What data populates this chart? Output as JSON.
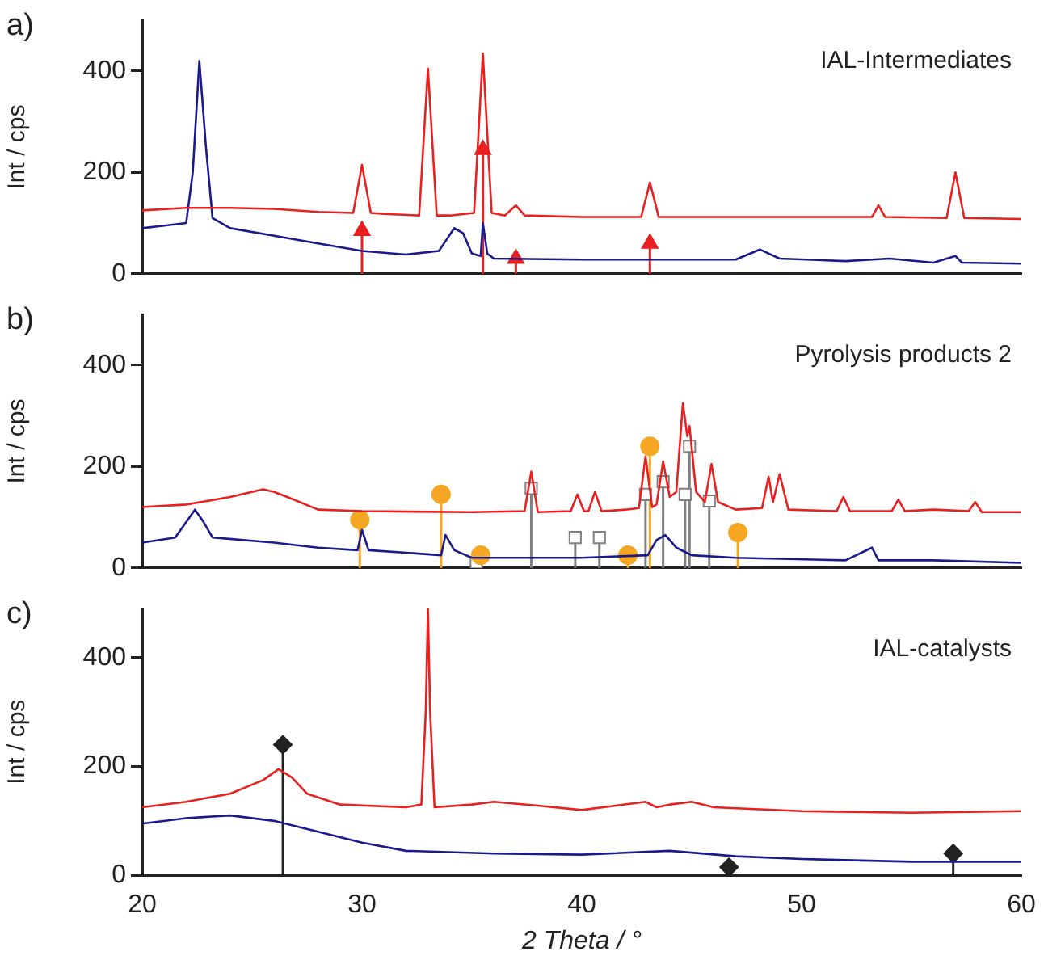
{
  "chart_data": [
    {
      "type": "line",
      "title": "IAL-Intermediates",
      "ylabel": "Int / cps",
      "annotations": [
        "a)"
      ],
      "xlim": [
        20,
        60
      ],
      "xticks": [
        20,
        30,
        40,
        50,
        60
      ],
      "ylim": [
        0,
        500
      ],
      "yticks": [
        0,
        200,
        400
      ],
      "tick_labels": "y",
      "grid": false,
      "legend": false,
      "series": [
        {
          "type": "line",
          "color": "#e8201f",
          "x": [
            20,
            22,
            24,
            26,
            28,
            29.6,
            30.0,
            30.4,
            31,
            32.6,
            33.0,
            33.4,
            34,
            35.1,
            35.5,
            35.9,
            36.5,
            37.0,
            37.4,
            40,
            42.7,
            43.1,
            43.5,
            46,
            50,
            53.2,
            53.5,
            53.8,
            56.6,
            57.0,
            57.4,
            60
          ],
          "values": [
            125,
            130,
            130,
            128,
            122,
            120,
            215,
            120,
            118,
            115,
            405,
            115,
            115,
            120,
            435,
            120,
            115,
            135,
            115,
            112,
            112,
            180,
            112,
            112,
            112,
            112,
            135,
            112,
            110,
            200,
            110,
            108
          ]
        },
        {
          "type": "line",
          "color": "#1a1a8c",
          "x": [
            20,
            21,
            22,
            22.3,
            22.6,
            22.9,
            23.2,
            24,
            26,
            28,
            30,
            32,
            33.5,
            34.2,
            34.6,
            35,
            35.4,
            35.5,
            35.7,
            36,
            40,
            44,
            47,
            48.1,
            49,
            52,
            54,
            56,
            57,
            57.3,
            60
          ],
          "values": [
            90,
            95,
            100,
            200,
            420,
            250,
            110,
            90,
            75,
            60,
            45,
            38,
            45,
            90,
            80,
            40,
            35,
            100,
            40,
            30,
            28,
            28,
            28,
            48,
            30,
            25,
            30,
            22,
            35,
            22,
            20
          ]
        },
        {
          "type": "lollipop",
          "color": "#e8201f",
          "marker": "triangle",
          "x": [
            30.0,
            35.5,
            37.0,
            43.1
          ],
          "values": [
            85,
            245,
            30,
            60
          ]
        }
      ]
    },
    {
      "type": "line",
      "title": "Pyrolysis products 2",
      "ylabel": "Int / cps",
      "annotations": [
        "b)"
      ],
      "xlim": [
        20,
        60
      ],
      "xticks": [
        20,
        30,
        40,
        50,
        60
      ],
      "ylim": [
        0,
        500
      ],
      "yticks": [
        0,
        200,
        400
      ],
      "tick_labels": "y",
      "grid": false,
      "legend": false,
      "series": [
        {
          "type": "line",
          "color": "#e8201f",
          "x": [
            20,
            22,
            24,
            25.5,
            26,
            26.6,
            28,
            30,
            35,
            37.4,
            37.7,
            38.0,
            39.5,
            39.8,
            40.1,
            40.3,
            40.6,
            40.9,
            42,
            42.6,
            42.9,
            43.2,
            43.4,
            43.7,
            44.0,
            44.3,
            44.6,
            44.8,
            44.9,
            45.2,
            45.6,
            45.9,
            46.2,
            47,
            48.2,
            48.5,
            48.7,
            49.0,
            49.4,
            51.6,
            51.9,
            52.2,
            54.1,
            54.4,
            54.7,
            56,
            57.6,
            57.9,
            58.2,
            60
          ],
          "values": [
            120,
            125,
            140,
            155,
            150,
            140,
            115,
            112,
            110,
            112,
            190,
            110,
            112,
            145,
            112,
            112,
            150,
            112,
            115,
            118,
            220,
            120,
            125,
            210,
            140,
            150,
            325,
            260,
            280,
            150,
            130,
            205,
            130,
            115,
            118,
            180,
            130,
            185,
            115,
            112,
            140,
            112,
            112,
            135,
            112,
            115,
            112,
            130,
            110,
            110
          ]
        },
        {
          "type": "line",
          "color": "#1a1a8c",
          "x": [
            20,
            21.5,
            22.4,
            22.8,
            23.2,
            26,
            28,
            29.8,
            30,
            30.3,
            32,
            33.6,
            33.8,
            34.2,
            35,
            40,
            43,
            43.4,
            43.8,
            44.3,
            45,
            47,
            52,
            53.2,
            53.5,
            56,
            60
          ],
          "values": [
            50,
            60,
            115,
            90,
            60,
            50,
            40,
            35,
            75,
            35,
            30,
            25,
            65,
            35,
            20,
            20,
            25,
            55,
            65,
            40,
            25,
            20,
            15,
            40,
            15,
            15,
            10
          ]
        },
        {
          "type": "lollipop",
          "color": "#f5a623",
          "marker": "circle",
          "x": [
            29.9,
            33.6,
            35.4,
            42.1,
            43.1,
            47.1
          ],
          "values": [
            95,
            145,
            25,
            25,
            240,
            70
          ]
        },
        {
          "type": "lollipop",
          "color": "#808080",
          "marker": "square",
          "x": [
            35.2,
            37.7,
            39.7,
            40.8,
            42.9,
            43.7,
            44.7,
            44.9,
            45.8
          ],
          "values": [
            10,
            157,
            60,
            60,
            145,
            170,
            145,
            240,
            132
          ]
        }
      ]
    },
    {
      "type": "line",
      "title": "IAL-catalysts",
      "xlabel": "2 Theta / °",
      "ylabel": "Int / cps",
      "annotations": [
        "c)"
      ],
      "xlim": [
        20,
        60
      ],
      "xticks": [
        20,
        30,
        40,
        50,
        60
      ],
      "ylim": [
        0,
        490
      ],
      "yticks": [
        0,
        200,
        400
      ],
      "grid": false,
      "legend": false,
      "series": [
        {
          "type": "line",
          "color": "#e8201f",
          "x": [
            20,
            22,
            24,
            25.5,
            26.2,
            26.8,
            27.5,
            29,
            32,
            32.7,
            32.9,
            33.0,
            33.1,
            33.3,
            35,
            36,
            38,
            40,
            42.9,
            43.4,
            44,
            45,
            46,
            50,
            55,
            60
          ],
          "values": [
            125,
            135,
            150,
            175,
            195,
            180,
            150,
            130,
            125,
            130,
            300,
            490,
            300,
            125,
            130,
            135,
            128,
            120,
            135,
            125,
            130,
            135,
            125,
            118,
            115,
            118
          ]
        },
        {
          "type": "line",
          "color": "#1a1a8c",
          "x": [
            20,
            22,
            24,
            26,
            28,
            30,
            32,
            36,
            40,
            44,
            47,
            50,
            55,
            60
          ],
          "values": [
            95,
            105,
            110,
            100,
            80,
            60,
            45,
            40,
            38,
            45,
            35,
            30,
            25,
            25
          ]
        },
        {
          "type": "lollipop",
          "color": "#222222",
          "marker": "diamond",
          "x": [
            26.4,
            46.7,
            56.9
          ],
          "values": [
            240,
            15,
            40
          ]
        }
      ]
    }
  ]
}
